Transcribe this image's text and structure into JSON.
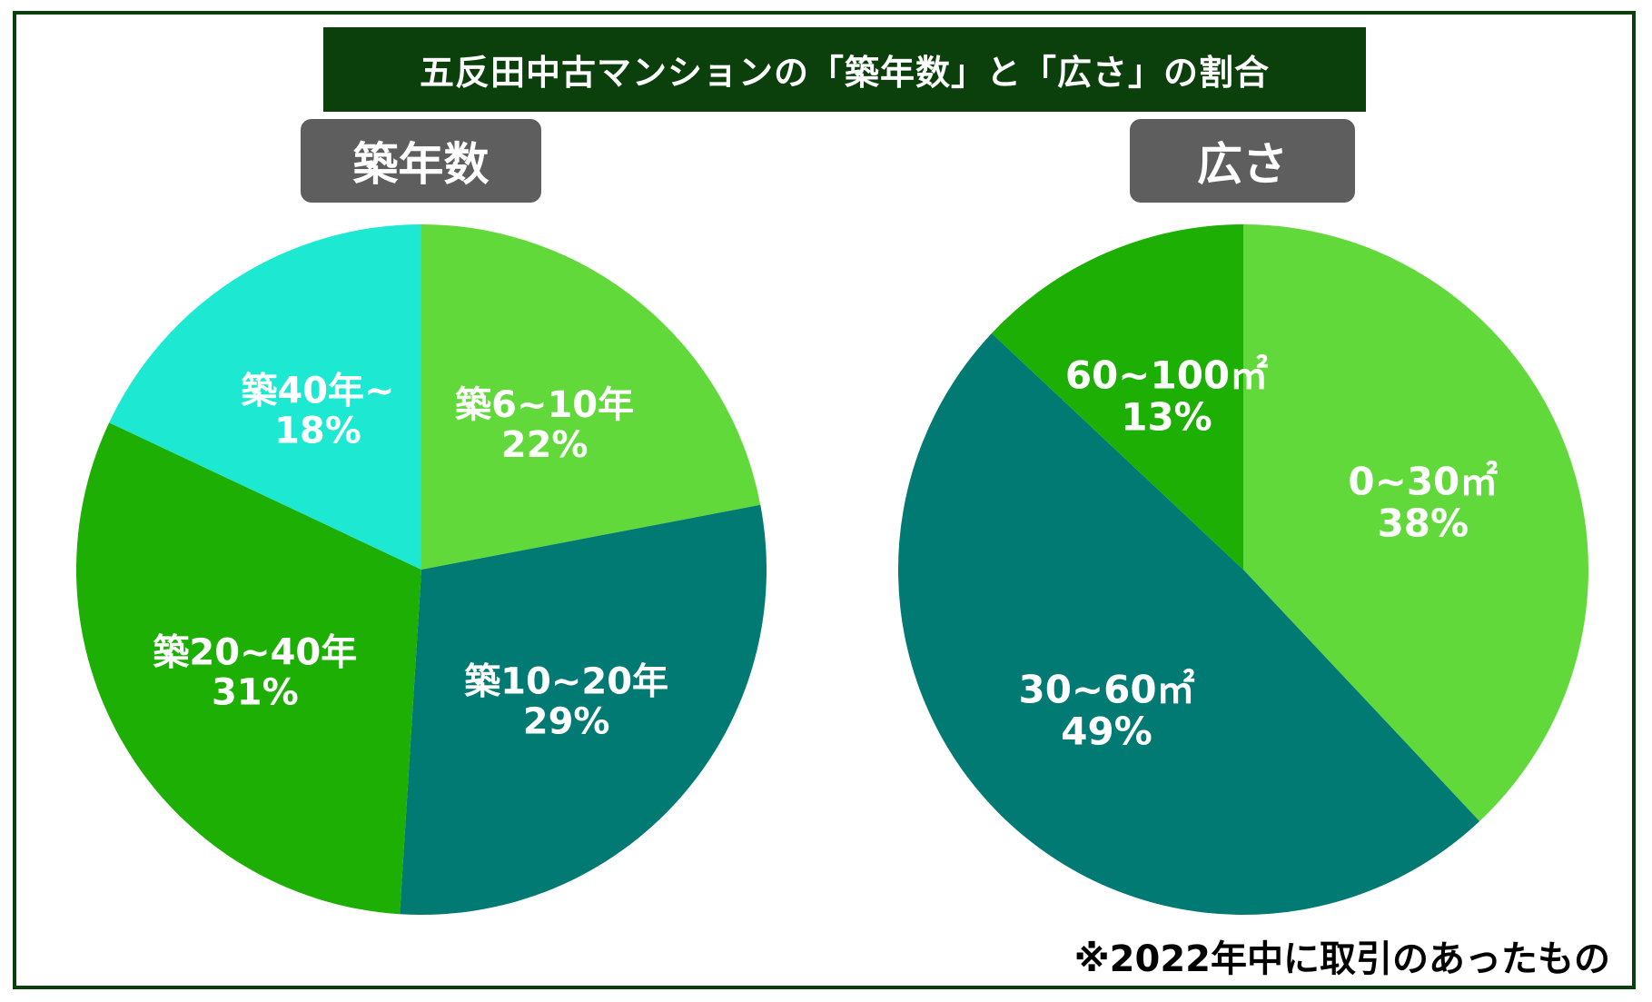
{
  "main_title": "五反田中古マンションの「築年数」と「広さ」の割合",
  "footnote": "※2022年中に取引のあったもの",
  "chart_data": [
    {
      "type": "pie",
      "title": "築年数",
      "unit": "%",
      "slices": [
        {
          "label": "築6~10年",
          "value": 22,
          "value_label": "22%",
          "color": "#62d93a"
        },
        {
          "label": "築10~20年",
          "value": 29,
          "value_label": "29%",
          "color": "#007a72"
        },
        {
          "label": "築20~40年",
          "value": 31,
          "value_label": "31%",
          "color": "#1daf04"
        },
        {
          "label": "築40年~",
          "value": 18,
          "value_label": "18%",
          "color": "#1de8d2"
        }
      ]
    },
    {
      "type": "pie",
      "title": "広さ",
      "unit": "%",
      "slices": [
        {
          "label": "0~30㎡",
          "value": 38,
          "value_label": "38%",
          "color": "#62d93a"
        },
        {
          "label": "30~60㎡",
          "value": 49,
          "value_label": "49%",
          "color": "#007a72"
        },
        {
          "label": "60~100㎡",
          "value": 13,
          "value_label": "13%",
          "color": "#1daf04"
        }
      ]
    }
  ]
}
